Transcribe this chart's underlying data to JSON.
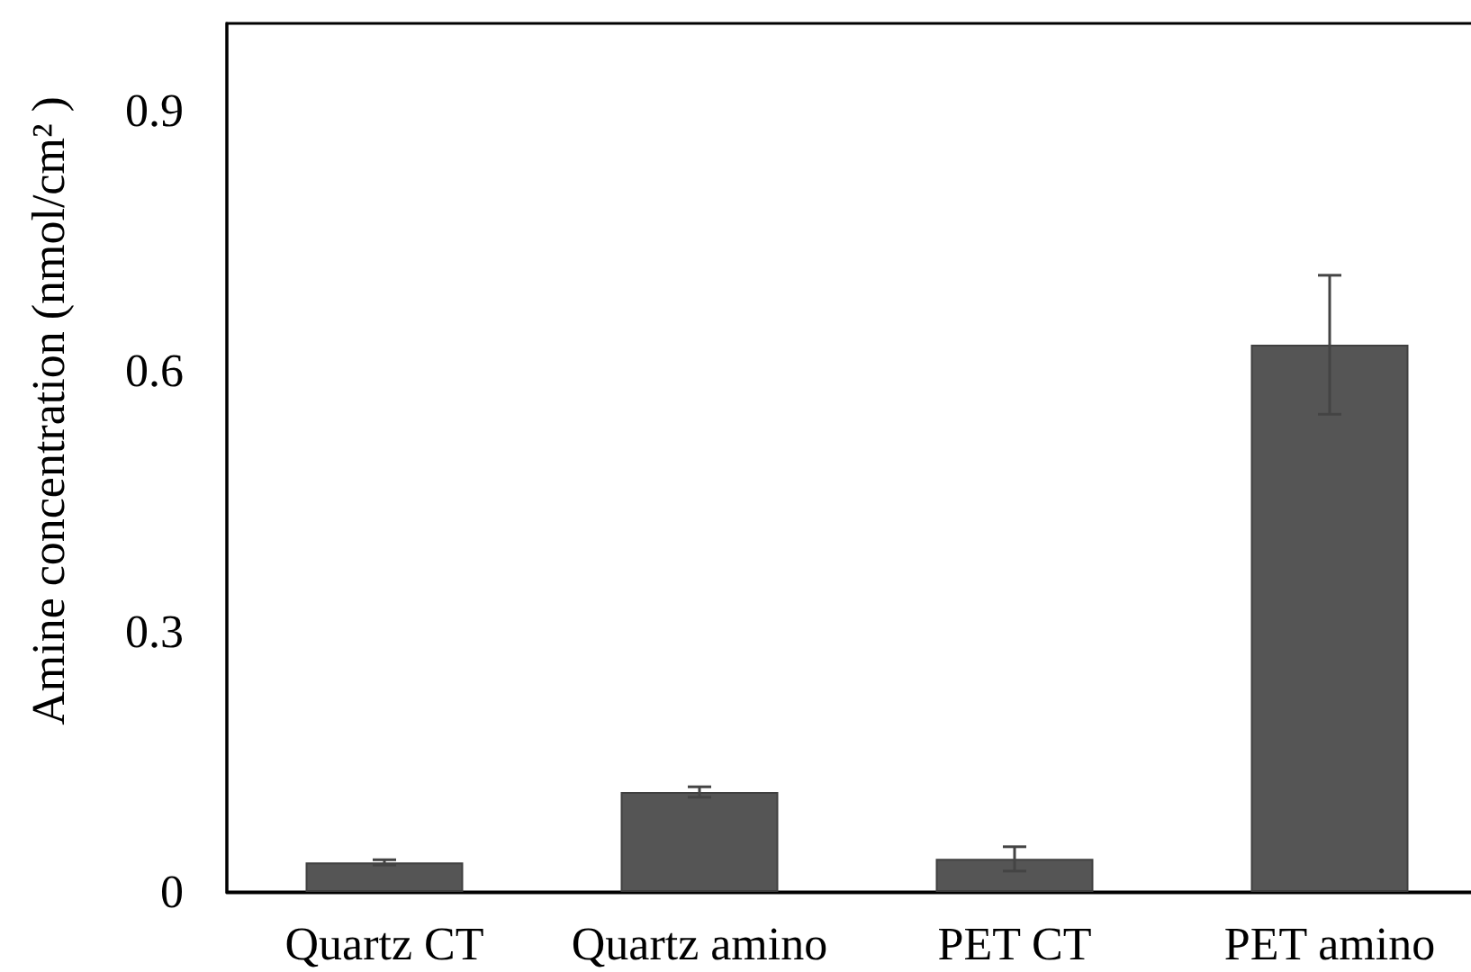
{
  "chart_data": {
    "type": "bar",
    "ylabel": "Amine concentration (nmol/cm² )",
    "categories": [
      "Quartz CT",
      "Quartz amino",
      "PET CT",
      "PET amino"
    ],
    "values": [
      0.034,
      0.115,
      0.038,
      0.63
    ],
    "errors": [
      0.003,
      0.006,
      0.014,
      0.08
    ],
    "color": "#555555",
    "ylim": [
      0,
      1
    ],
    "yticks": [
      0,
      0.3,
      0.6,
      0.9
    ]
  }
}
